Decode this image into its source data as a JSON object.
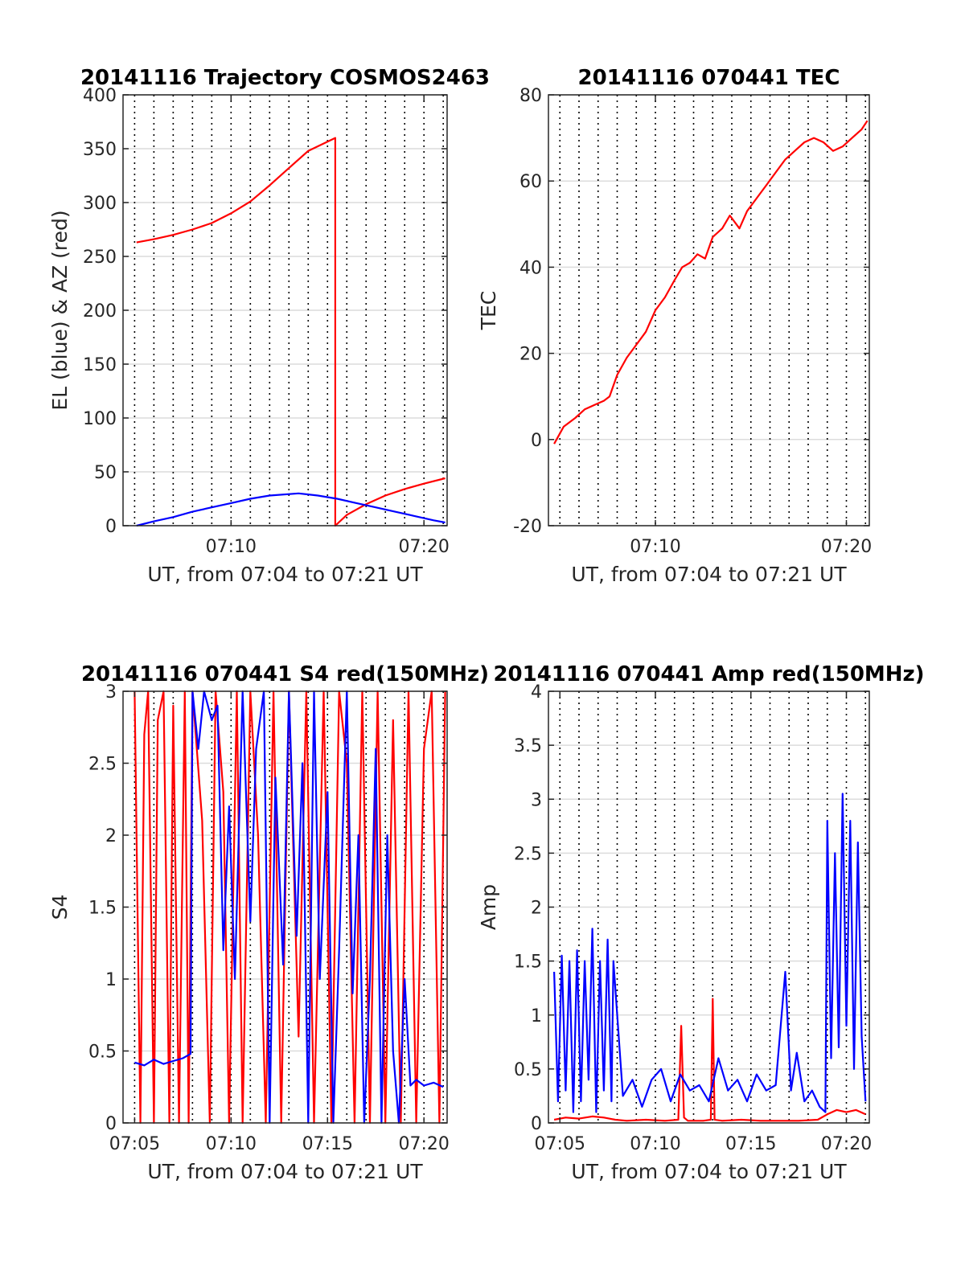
{
  "colors": {
    "red": "#ff0000",
    "blue": "#0000ff",
    "grid": "#dcdcdc",
    "axis": "#262626"
  },
  "chart_data": [
    {
      "type": "line",
      "title": "20141116 Trajectory COSMOS2463",
      "xlabel": "UT, from 07:04 to 07:21 UT",
      "ylabel": "EL (blue) & AZ (red)",
      "xlim": [
        4.4,
        21.2
      ],
      "ylim": [
        0,
        400
      ],
      "x_ticks": [
        10,
        20
      ],
      "x_tick_labels": [
        "07:10",
        "07:20"
      ],
      "y_ticks": [
        0,
        50,
        100,
        150,
        200,
        250,
        300,
        350,
        400
      ],
      "y_tick_labels": [
        "0",
        "50",
        "100",
        "150",
        "200",
        "250",
        "300",
        "350",
        "400"
      ],
      "series": [
        {
          "color": "red",
          "x": [
            5.1,
            6,
            7,
            8,
            9,
            10,
            11,
            12,
            13,
            14,
            15.4,
            15.4,
            16,
            17,
            18,
            19,
            20,
            21.1
          ],
          "y": [
            263,
            266,
            270,
            275,
            281,
            290,
            301,
            316,
            332,
            348,
            360,
            0,
            10,
            20,
            28,
            34,
            39,
            44
          ]
        },
        {
          "color": "blue",
          "x": [
            5.1,
            6,
            7,
            8,
            9,
            10,
            11,
            12,
            13.5,
            14.5,
            15.5,
            16.5,
            17.5,
            18.5,
            19.5,
            20.5,
            21.1
          ],
          "y": [
            0,
            4,
            8,
            13,
            17,
            21,
            25,
            28,
            30,
            28,
            25,
            21,
            17,
            13,
            9,
            5,
            3
          ]
        }
      ]
    },
    {
      "type": "line",
      "title": "20141116 070441 TEC",
      "xlabel": "UT, from 07:04 to 07:21 UT",
      "ylabel": "TEC",
      "xlim": [
        4.4,
        21.2
      ],
      "ylim": [
        -20,
        80
      ],
      "x_ticks": [
        10,
        20
      ],
      "x_tick_labels": [
        "07:10",
        "07:20"
      ],
      "y_ticks": [
        -20,
        0,
        20,
        40,
        60,
        80
      ],
      "y_tick_labels": [
        "-20",
        "0",
        "20",
        "40",
        "60",
        "80"
      ],
      "series": [
        {
          "color": "red",
          "x": [
            4.7,
            5.2,
            5.8,
            6.3,
            6.8,
            7.3,
            7.6,
            8.0,
            8.5,
            9.0,
            9.5,
            10.0,
            10.5,
            11.0,
            11.4,
            11.8,
            12.2,
            12.6,
            13.0,
            13.5,
            13.9,
            14.4,
            14.8,
            15.3,
            15.8,
            16.3,
            16.8,
            17.3,
            17.8,
            18.3,
            18.8,
            19.3,
            19.8,
            20.3,
            20.8,
            21.1
          ],
          "y": [
            -1,
            3,
            5,
            7,
            8,
            9,
            10,
            15,
            19,
            22,
            25,
            30,
            33,
            37,
            40,
            41,
            43,
            42,
            47,
            49,
            52,
            49,
            53,
            56,
            59,
            62,
            65,
            67,
            69,
            70,
            69,
            67,
            68,
            70,
            72,
            74
          ]
        }
      ]
    },
    {
      "type": "line",
      "title": "20141116 070441 S4 red(150MHz)",
      "xlabel": "UT, from 07:04 to 07:21 UT",
      "ylabel": "S4",
      "xlim": [
        4.4,
        21.2
      ],
      "ylim": [
        0,
        3
      ],
      "x_ticks": [
        5,
        10,
        15,
        20
      ],
      "x_tick_labels": [
        "07:05",
        "07:10",
        "07:15",
        "07:20"
      ],
      "y_ticks": [
        0,
        0.5,
        1,
        1.5,
        2,
        2.5,
        3
      ],
      "y_tick_labels": [
        "0",
        "0.5",
        "1",
        "1.5",
        "2",
        "2.5",
        "3"
      ],
      "series": [
        {
          "color": "red",
          "x": [
            5.0,
            5.3,
            5.5,
            5.7,
            6.0,
            6.2,
            6.5,
            6.8,
            7.0,
            7.3,
            7.6,
            7.8,
            8.0,
            8.5,
            8.9,
            9.2,
            9.6,
            9.9,
            10.3,
            10.6,
            11.0,
            11.4,
            11.8,
            12.2,
            12.6,
            13.0,
            13.5,
            13.9,
            14.3,
            14.8,
            15.2,
            15.6,
            16.0,
            16.4,
            16.8,
            17.2,
            17.6,
            18.0,
            18.4,
            18.8,
            19.2,
            19.6,
            20.0,
            20.4,
            20.8,
            21.1
          ],
          "y": [
            3.0,
            0.0,
            2.7,
            3.0,
            0.0,
            2.8,
            3.0,
            0.0,
            2.9,
            0.0,
            3.0,
            0.0,
            3.0,
            2.1,
            0.0,
            3.0,
            2.3,
            0.0,
            3.0,
            0.0,
            3.0,
            2.0,
            0.0,
            3.0,
            0.0,
            3.0,
            0.6,
            3.0,
            0.0,
            3.0,
            0.0,
            3.0,
            2.5,
            0.0,
            3.0,
            0.0,
            3.0,
            0.0,
            2.8,
            0.0,
            3.0,
            0.0,
            2.6,
            3.0,
            0.0,
            3.0
          ]
        },
        {
          "color": "blue",
          "x": [
            5.0,
            5.5,
            6.0,
            6.5,
            7.0,
            7.5,
            7.9,
            8.0,
            8.3,
            8.6,
            9.0,
            9.3,
            9.6,
            9.9,
            10.2,
            10.6,
            11.0,
            11.3,
            11.7,
            12.0,
            12.3,
            12.7,
            13.0,
            13.4,
            13.7,
            14.0,
            14.3,
            14.6,
            15.0,
            15.3,
            15.6,
            16.0,
            16.3,
            16.6,
            16.9,
            17.2,
            17.5,
            17.8,
            18.1,
            18.4,
            18.7,
            19.0,
            19.3,
            19.6,
            20.0,
            20.5,
            21.0
          ],
          "y": [
            0.42,
            0.4,
            0.44,
            0.41,
            0.43,
            0.45,
            0.48,
            3.0,
            2.6,
            3.0,
            2.8,
            2.9,
            1.2,
            2.2,
            1.0,
            3.0,
            1.4,
            2.6,
            3.0,
            0.0,
            2.4,
            1.1,
            3.0,
            1.3,
            2.5,
            0.0,
            3.0,
            1.0,
            2.3,
            0.0,
            1.2,
            3.0,
            0.9,
            2.0,
            0.0,
            1.0,
            2.6,
            0.0,
            2.0,
            0.5,
            0.0,
            1.0,
            0.26,
            0.3,
            0.26,
            0.28,
            0.25
          ]
        }
      ]
    },
    {
      "type": "line",
      "title": "20141116 070441 Amp red(150MHz)",
      "xlabel": "UT, from 07:04 to 07:21 UT",
      "ylabel": "Amp",
      "xlim": [
        4.4,
        21.2
      ],
      "ylim": [
        0,
        4
      ],
      "x_ticks": [
        5,
        10,
        15,
        20
      ],
      "x_tick_labels": [
        "07:05",
        "07:10",
        "07:15",
        "07:20"
      ],
      "y_ticks": [
        0,
        0.5,
        1,
        1.5,
        2,
        2.5,
        3,
        3.5,
        4
      ],
      "y_tick_labels": [
        "0",
        "0.5",
        "1",
        "1.5",
        "2",
        "2.5",
        "3",
        "3.5",
        "4"
      ],
      "series": [
        {
          "color": "red",
          "x": [
            4.7,
            5.3,
            6.0,
            6.7,
            7.3,
            7.9,
            8.5,
            9.5,
            10.5,
            11.2,
            11.35,
            11.5,
            11.7,
            12.5,
            12.9,
            13.0,
            13.1,
            13.5,
            14.5,
            15.5,
            16.5,
            17.5,
            18.5,
            19.0,
            19.5,
            20.0,
            20.5,
            21.0
          ],
          "y": [
            0.03,
            0.05,
            0.04,
            0.06,
            0.05,
            0.03,
            0.02,
            0.03,
            0.02,
            0.03,
            0.9,
            0.05,
            0.02,
            0.02,
            0.03,
            1.15,
            0.03,
            0.02,
            0.03,
            0.02,
            0.02,
            0.02,
            0.03,
            0.08,
            0.12,
            0.1,
            0.12,
            0.08
          ]
        },
        {
          "color": "blue",
          "x": [
            4.7,
            4.9,
            5.1,
            5.3,
            5.5,
            5.7,
            5.9,
            6.1,
            6.3,
            6.5,
            6.7,
            6.9,
            7.1,
            7.3,
            7.5,
            7.7,
            7.8,
            8.3,
            8.8,
            9.3,
            9.8,
            10.3,
            10.8,
            11.3,
            11.8,
            12.3,
            12.8,
            13.3,
            13.8,
            14.3,
            14.8,
            15.3,
            15.8,
            16.3,
            16.8,
            17.1,
            17.4,
            17.8,
            18.2,
            18.6,
            18.9,
            19.0,
            19.2,
            19.4,
            19.6,
            19.8,
            20.0,
            20.2,
            20.4,
            20.6,
            20.8,
            21.0
          ],
          "y": [
            1.4,
            0.2,
            1.55,
            0.3,
            1.5,
            0.1,
            1.6,
            0.2,
            1.5,
            0.4,
            1.8,
            0.1,
            1.5,
            0.3,
            1.7,
            0.2,
            1.5,
            0.25,
            0.4,
            0.15,
            0.4,
            0.5,
            0.2,
            0.45,
            0.3,
            0.35,
            0.2,
            0.6,
            0.3,
            0.4,
            0.2,
            0.45,
            0.3,
            0.35,
            1.4,
            0.3,
            0.65,
            0.2,
            0.3,
            0.15,
            0.1,
            2.8,
            0.6,
            2.5,
            0.7,
            3.05,
            0.9,
            2.8,
            0.5,
            2.6,
            0.8,
            0.2
          ]
        }
      ]
    }
  ]
}
